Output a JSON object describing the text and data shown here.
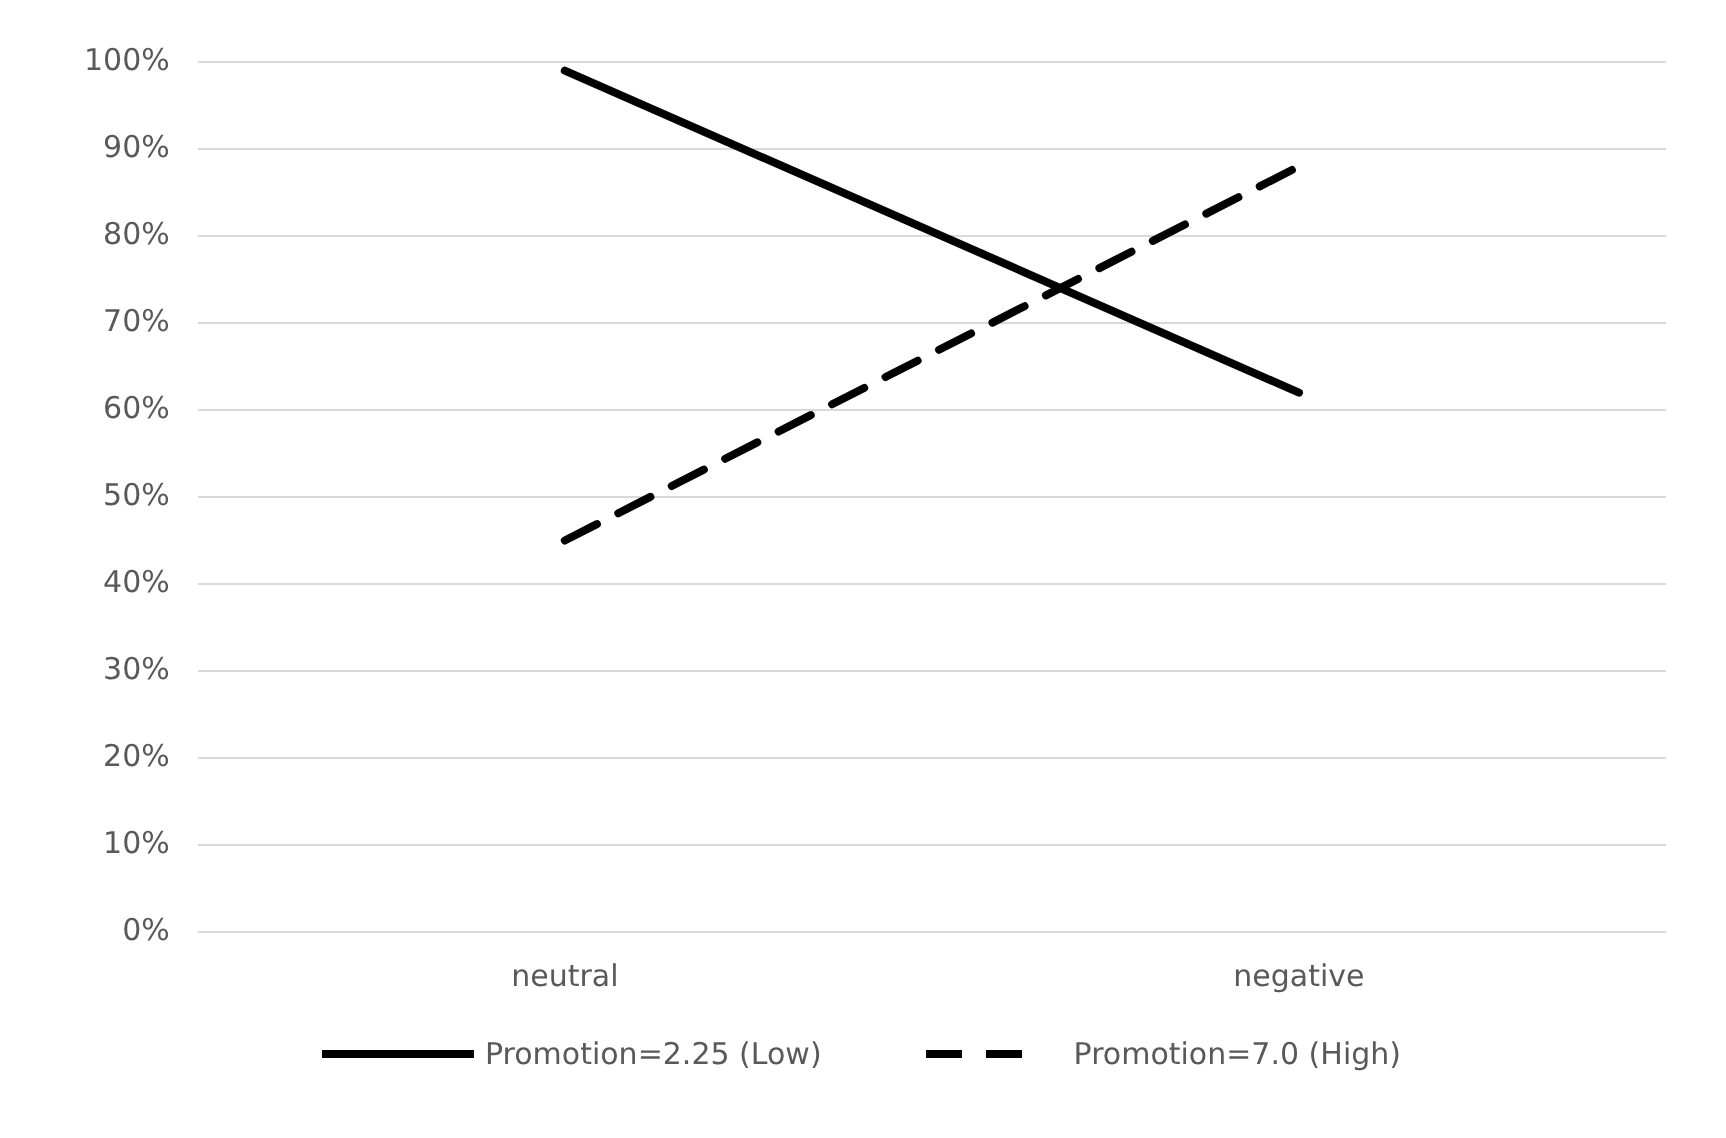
{
  "chart_data": {
    "type": "line",
    "categories": [
      "neutral",
      "negative"
    ],
    "series": [
      {
        "name": "Promotion=2.25 (Low)",
        "color": "#000000",
        "line_style": "solid",
        "values": [
          99,
          62
        ]
      },
      {
        "name": "Promotion=7.0 (High)",
        "color": "#000000",
        "line_style": "dashed",
        "values": [
          45,
          88
        ]
      }
    ],
    "ylim": [
      0,
      100
    ],
    "yticks": [
      {
        "value": 0,
        "label": "0%"
      },
      {
        "value": 10,
        "label": "10%"
      },
      {
        "value": 20,
        "label": "20%"
      },
      {
        "value": 30,
        "label": "30%"
      },
      {
        "value": 40,
        "label": "40%"
      },
      {
        "value": 50,
        "label": "50%"
      },
      {
        "value": 60,
        "label": "60%"
      },
      {
        "value": 70,
        "label": "70%"
      },
      {
        "value": 80,
        "label": "80%"
      },
      {
        "value": 90,
        "label": "90%"
      },
      {
        "value": 100,
        "label": "100%"
      }
    ],
    "grid": "y",
    "legend": "bottom",
    "marker": "none"
  }
}
